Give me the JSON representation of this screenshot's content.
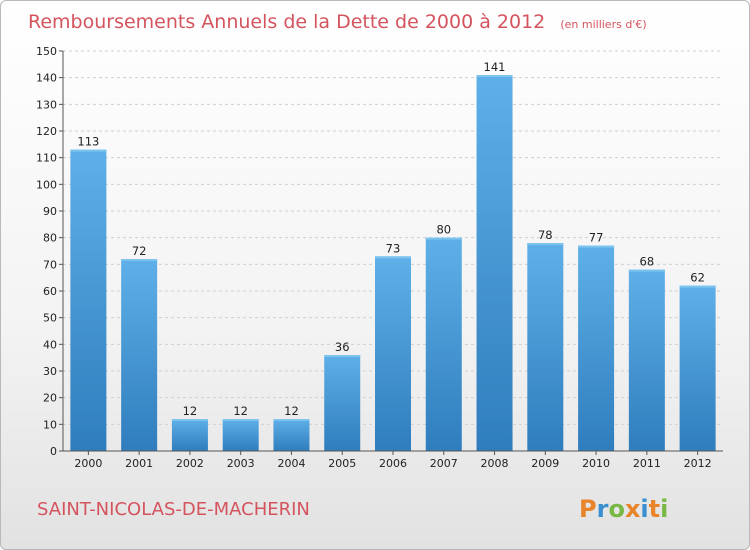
{
  "chart_data": {
    "type": "bar",
    "title": "Remboursements Annuels de la Dette de 2000 à 2012",
    "unit": "(en milliers d'€)",
    "categories": [
      "2000",
      "2001",
      "2002",
      "2003",
      "2004",
      "2005",
      "2006",
      "2007",
      "2008",
      "2009",
      "2010",
      "2011",
      "2012"
    ],
    "values": [
      113,
      72,
      12,
      12,
      12,
      36,
      73,
      80,
      141,
      78,
      77,
      68,
      62
    ],
    "ylim": [
      0,
      150
    ],
    "yticks": [
      0,
      10,
      20,
      30,
      40,
      50,
      60,
      70,
      80,
      90,
      100,
      110,
      120,
      130,
      140,
      150
    ],
    "grid": true,
    "colors": {
      "bar_light": "#5dade6",
      "bar_dark": "#2f7fbf",
      "title": "#d4545e"
    }
  },
  "commune": "SAINT-NICOLAS-DE-MACHERIN",
  "logo": {
    "letters": [
      "P",
      "r",
      "o",
      "x",
      "i",
      "t",
      "i"
    ],
    "colors": [
      "#e8842a",
      "#3a8fd0",
      "#7ab845",
      "#e8842a",
      "#3a8fd0",
      "#e8842a",
      "#7ab845"
    ]
  }
}
